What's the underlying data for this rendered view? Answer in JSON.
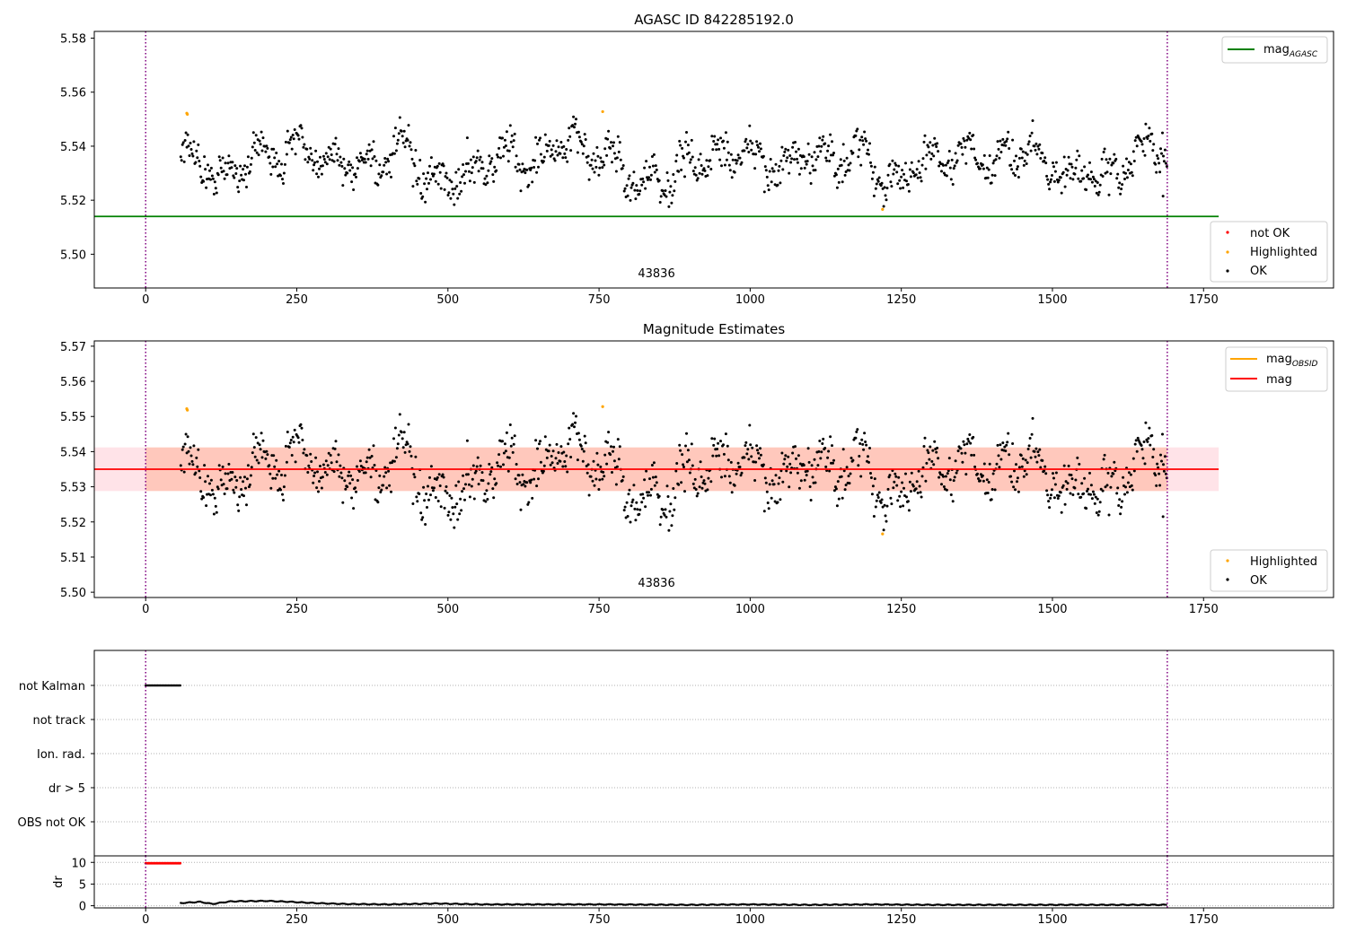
{
  "figure": {
    "panels": [
      {
        "id": "top",
        "title": "AGASC ID 842285192.0",
        "xlim": [
          -85,
          1965
        ],
        "ylim": [
          5.4875,
          5.5825
        ],
        "xticks": [
          0,
          250,
          500,
          750,
          1000,
          1250,
          1500,
          1750
        ],
        "yticks": [
          5.5,
          5.52,
          5.54,
          5.56,
          5.58
        ],
        "ytick_labels": [
          "5.50",
          "5.52",
          "5.54",
          "5.56",
          "5.58"
        ],
        "obs_label": "43836",
        "obs_label_x": 845,
        "obs_label_y": 5.4915,
        "vlines": [
          0,
          1690
        ],
        "hline": {
          "y": 5.514,
          "x0": -85,
          "x1": 1775,
          "color": "#008000"
        },
        "legend_line": {
          "label": "mag",
          "subscript": "AGASC",
          "color": "#008000"
        },
        "legend_points": [
          {
            "label": "not OK",
            "color": "#ff0000"
          },
          {
            "label": "Highlighted",
            "color": "#ffa500"
          },
          {
            "label": "OK",
            "color": "#000000"
          }
        ]
      },
      {
        "id": "mid",
        "title": "Magnitude Estimates",
        "xlim": [
          -85,
          1965
        ],
        "ylim": [
          5.4985,
          5.5715
        ],
        "xticks": [
          0,
          250,
          500,
          750,
          1000,
          1250,
          1500,
          1750
        ],
        "yticks": [
          5.5,
          5.51,
          5.52,
          5.53,
          5.54,
          5.55,
          5.56,
          5.57
        ],
        "ytick_labels": [
          "5.50",
          "5.51",
          "5.52",
          "5.53",
          "5.54",
          "5.55",
          "5.56",
          "5.57"
        ],
        "obs_label": "43836",
        "obs_label_x": 845,
        "obs_label_y": 5.5015,
        "vlines": [
          0,
          1690
        ],
        "mean_line": {
          "y": 5.535,
          "x0": -85,
          "x1": 1775,
          "color": "#ff0000"
        },
        "band_outer": {
          "y0": 5.5288,
          "y1": 5.5412,
          "x0": -85,
          "x1": 1775,
          "color": "#ffc0cb"
        },
        "band_inner": {
          "y0": 5.5288,
          "y1": 5.5412,
          "x0": 0,
          "x1": 1690,
          "color": "#ffa07a"
        },
        "legend_lines": [
          {
            "label": "mag",
            "subscript": "OBSID",
            "color": "#ffa500"
          },
          {
            "label": "mag",
            "subscript": "",
            "color": "#ff0000"
          }
        ],
        "legend_points": [
          {
            "label": "Highlighted",
            "color": "#ffa500"
          },
          {
            "label": "OK",
            "color": "#000000"
          }
        ]
      }
    ],
    "flags_panel": {
      "xlim": [
        -85,
        1965
      ],
      "categories": [
        "not Kalman",
        "not track",
        "Ion. rad.",
        "dr > 5",
        "OBS not OK"
      ],
      "not_kalman_range": [
        0,
        58
      ],
      "vlines": [
        0,
        1690
      ]
    },
    "dr_panel": {
      "ylabel": "dr",
      "xlim": [
        -85,
        1965
      ],
      "ylim": [
        -0.5,
        11.5
      ],
      "yticks": [
        0,
        5,
        10
      ],
      "ytick_labels": [
        "0",
        "5",
        "10"
      ],
      "xticks": [
        0,
        250,
        500,
        750,
        1000,
        1250,
        1500,
        1750
      ],
      "red_range": [
        0,
        58
      ],
      "red_value": 9.8,
      "vlines": [
        0,
        1690
      ]
    }
  },
  "chart_data": {
    "type": "scatter",
    "title": "AGASC ID 842285192.0",
    "subtitle": "Magnitude Estimates",
    "xlim": [
      -85,
      1965
    ],
    "ylim": [
      5.4875,
      5.5825
    ],
    "mag_agasc": 5.514,
    "mag_mean": 5.535,
    "mag_band": [
      5.5288,
      5.5412
    ],
    "obsid": "43836",
    "observation_range": [
      58,
      1690
    ],
    "highlighted_points": [
      {
        "x": 68,
        "y": 5.5522
      },
      {
        "x": 69,
        "y": 5.5518
      },
      {
        "x": 756,
        "y": 5.5528
      },
      {
        "x": 1219,
        "y": 5.5166
      }
    ],
    "magnitude_keypoints": {
      "x": [
        58,
        75,
        95,
        115,
        130,
        150,
        170,
        190,
        210,
        230,
        250,
        270,
        290,
        310,
        330,
        350,
        370,
        385,
        400,
        420,
        440,
        460,
        480,
        500,
        520,
        540,
        560,
        580,
        600,
        620,
        640,
        660,
        680,
        700,
        720,
        740,
        760,
        780,
        800,
        820,
        840,
        860,
        880,
        900,
        920,
        940,
        960,
        980,
        1000,
        1020,
        1040,
        1060,
        1080,
        1100,
        1120,
        1140,
        1160,
        1180,
        1200,
        1220,
        1240,
        1260,
        1280,
        1300,
        1320,
        1340,
        1360,
        1380,
        1400,
        1420,
        1440,
        1460,
        1480,
        1500,
        1520,
        1540,
        1560,
        1580,
        1600,
        1620,
        1640,
        1660,
        1690
      ],
      "y": [
        5.537,
        5.536,
        5.534,
        5.529,
        5.527,
        5.533,
        5.534,
        5.539,
        5.536,
        5.537,
        5.541,
        5.537,
        5.534,
        5.536,
        5.534,
        5.532,
        5.535,
        5.532,
        5.537,
        5.541,
        5.536,
        5.528,
        5.525,
        5.527,
        5.529,
        5.531,
        5.533,
        5.536,
        5.538,
        5.534,
        5.533,
        5.536,
        5.54,
        5.542,
        5.539,
        5.536,
        5.538,
        5.535,
        5.528,
        5.526,
        5.527,
        5.526,
        5.531,
        5.535,
        5.534,
        5.537,
        5.536,
        5.538,
        5.538,
        5.534,
        5.531,
        5.533,
        5.533,
        5.538,
        5.539,
        5.532,
        5.536,
        5.537,
        5.535,
        5.527,
        5.525,
        5.529,
        5.534,
        5.536,
        5.534,
        5.536,
        5.538,
        5.534,
        5.532,
        5.536,
        5.538,
        5.541,
        5.535,
        5.532,
        5.529,
        5.53,
        5.531,
        5.528,
        5.528,
        5.533,
        5.538,
        5.54,
        5.539
      ]
    },
    "dr_keypoints": {
      "x": [
        58,
        90,
        110,
        140,
        200,
        240,
        280,
        330,
        400,
        480,
        560,
        650,
        760,
        900,
        1000,
        1100,
        1200,
        1300,
        1400,
        1500,
        1600,
        1690
      ],
      "y": [
        0.6,
        0.9,
        0.4,
        1.0,
        1.1,
        0.9,
        0.6,
        0.4,
        0.3,
        0.5,
        0.3,
        0.3,
        0.3,
        0.2,
        0.3,
        0.2,
        0.3,
        0.2,
        0.2,
        0.2,
        0.2,
        0.2
      ]
    }
  }
}
